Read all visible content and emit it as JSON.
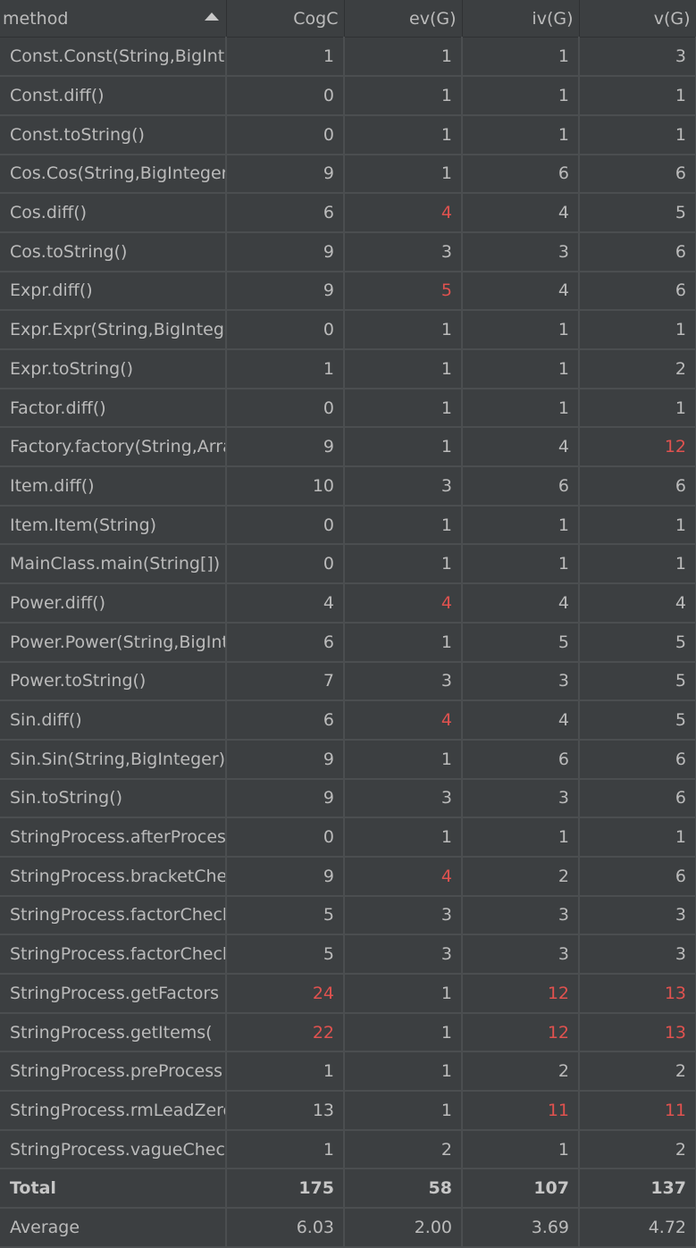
{
  "columns": [
    {
      "key": "method",
      "label": "method",
      "sorted": "ascending"
    },
    {
      "key": "cogc",
      "label": "CogC"
    },
    {
      "key": "ev",
      "label": "ev(G)"
    },
    {
      "key": "iv",
      "label": "iv(G)"
    },
    {
      "key": "v",
      "label": "v(G)"
    }
  ],
  "alert_color": "#e0524f",
  "rows": [
    {
      "method": "Const.Const(String,BigInteger)",
      "cogc": "1",
      "ev": "1",
      "iv": "1",
      "v": "3",
      "alert": []
    },
    {
      "method": "Const.diff()",
      "cogc": "0",
      "ev": "1",
      "iv": "1",
      "v": "1",
      "alert": []
    },
    {
      "method": "Const.toString()",
      "cogc": "0",
      "ev": "1",
      "iv": "1",
      "v": "1",
      "alert": []
    },
    {
      "method": "Cos.Cos(String,BigInteger)",
      "cogc": "9",
      "ev": "1",
      "iv": "6",
      "v": "6",
      "alert": []
    },
    {
      "method": "Cos.diff()",
      "cogc": "6",
      "ev": "4",
      "iv": "4",
      "v": "5",
      "alert": [
        "ev"
      ]
    },
    {
      "method": "Cos.toString()",
      "cogc": "9",
      "ev": "3",
      "iv": "3",
      "v": "6",
      "alert": []
    },
    {
      "method": "Expr.diff()",
      "cogc": "9",
      "ev": "5",
      "iv": "4",
      "v": "6",
      "alert": [
        "ev"
      ]
    },
    {
      "method": "Expr.Expr(String,BigInteger)",
      "cogc": "0",
      "ev": "1",
      "iv": "1",
      "v": "1",
      "alert": []
    },
    {
      "method": "Expr.toString()",
      "cogc": "1",
      "ev": "1",
      "iv": "1",
      "v": "2",
      "alert": []
    },
    {
      "method": "Factor.diff()",
      "cogc": "0",
      "ev": "1",
      "iv": "1",
      "v": "1",
      "alert": []
    },
    {
      "method": "Factory.factory(String,ArrayList)",
      "cogc": "9",
      "ev": "1",
      "iv": "4",
      "v": "12",
      "alert": [
        "v"
      ]
    },
    {
      "method": "Item.diff()",
      "cogc": "10",
      "ev": "3",
      "iv": "6",
      "v": "6",
      "alert": []
    },
    {
      "method": "Item.Item(String)",
      "cogc": "0",
      "ev": "1",
      "iv": "1",
      "v": "1",
      "alert": []
    },
    {
      "method": "MainClass.main(String[])",
      "cogc": "0",
      "ev": "1",
      "iv": "1",
      "v": "1",
      "alert": []
    },
    {
      "method": "Power.diff()",
      "cogc": "4",
      "ev": "4",
      "iv": "4",
      "v": "4",
      "alert": [
        "ev"
      ]
    },
    {
      "method": "Power.Power(String,BigInteger)",
      "cogc": "6",
      "ev": "1",
      "iv": "5",
      "v": "5",
      "alert": []
    },
    {
      "method": "Power.toString()",
      "cogc": "7",
      "ev": "3",
      "iv": "3",
      "v": "5",
      "alert": []
    },
    {
      "method": "Sin.diff()",
      "cogc": "6",
      "ev": "4",
      "iv": "4",
      "v": "5",
      "alert": [
        "ev"
      ]
    },
    {
      "method": "Sin.Sin(String,BigInteger)",
      "cogc": "9",
      "ev": "1",
      "iv": "6",
      "v": "6",
      "alert": []
    },
    {
      "method": "Sin.toString()",
      "cogc": "9",
      "ev": "3",
      "iv": "3",
      "v": "6",
      "alert": []
    },
    {
      "method": "StringProcess.afterProcess",
      "cogc": "0",
      "ev": "1",
      "iv": "1",
      "v": "1",
      "alert": []
    },
    {
      "method": "StringProcess.bracketCheck",
      "cogc": "9",
      "ev": "4",
      "iv": "2",
      "v": "6",
      "alert": [
        "ev"
      ]
    },
    {
      "method": "StringProcess.factorCheck",
      "cogc": "5",
      "ev": "3",
      "iv": "3",
      "v": "3",
      "alert": []
    },
    {
      "method": "StringProcess.factorCheck",
      "cogc": "5",
      "ev": "3",
      "iv": "3",
      "v": "3",
      "alert": []
    },
    {
      "method": "StringProcess.getFactors",
      "cogc": "24",
      "ev": "1",
      "iv": "12",
      "v": "13",
      "alert": [
        "cogc",
        "iv",
        "v"
      ]
    },
    {
      "method": "StringProcess.getItems(",
      "cogc": "22",
      "ev": "1",
      "iv": "12",
      "v": "13",
      "alert": [
        "cogc",
        "iv",
        "v"
      ]
    },
    {
      "method": "StringProcess.preProcess",
      "cogc": "1",
      "ev": "1",
      "iv": "2",
      "v": "2",
      "alert": []
    },
    {
      "method": "StringProcess.rmLeadZero",
      "cogc": "13",
      "ev": "1",
      "iv": "11",
      "v": "11",
      "alert": [
        "iv",
        "v"
      ]
    },
    {
      "method": "StringProcess.vagueCheck",
      "cogc": "1",
      "ev": "2",
      "iv": "1",
      "v": "2",
      "alert": []
    }
  ],
  "total": {
    "method": "Total",
    "cogc": "175",
    "ev": "58",
    "iv": "107",
    "v": "137"
  },
  "average": {
    "method": "Average",
    "cogc": "6.03",
    "ev": "2.00",
    "iv": "3.69",
    "v": "4.72"
  }
}
